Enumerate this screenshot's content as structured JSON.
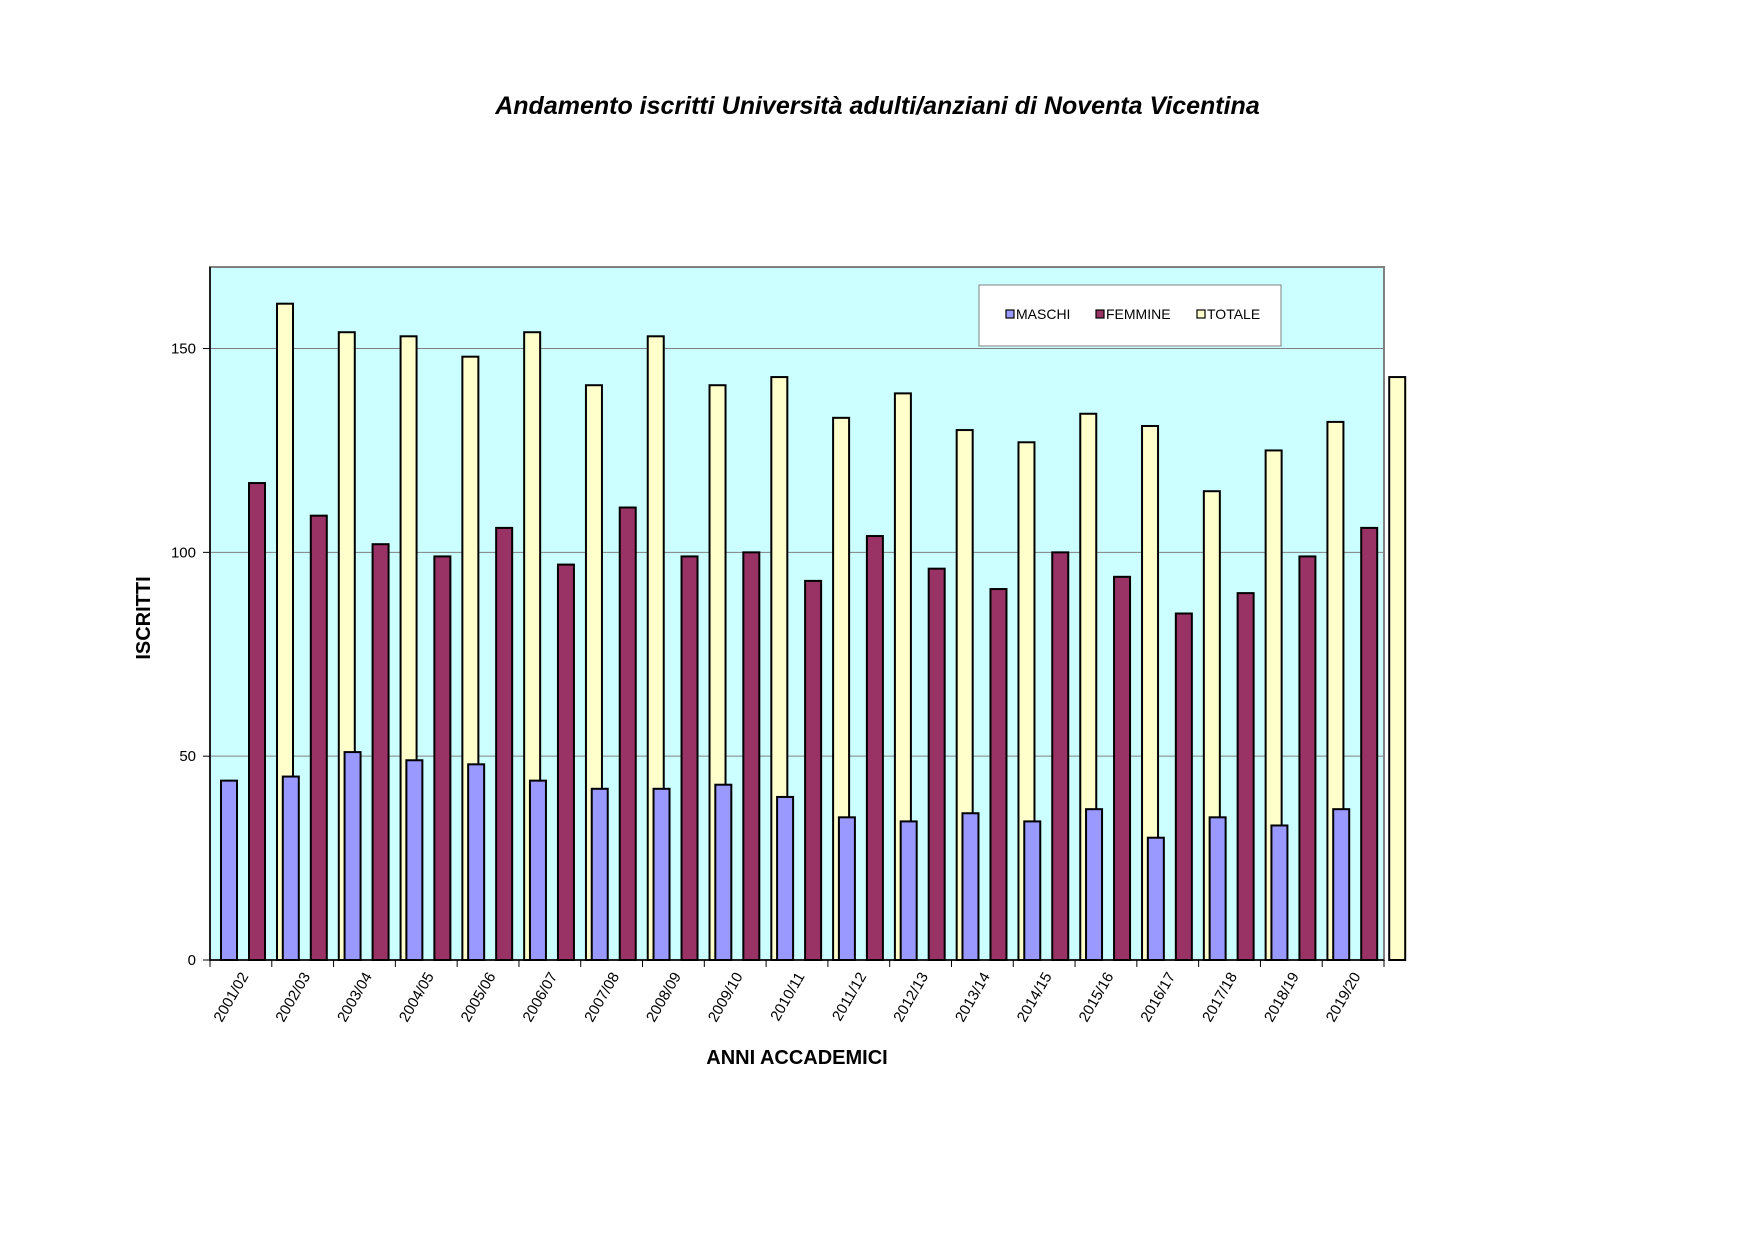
{
  "chart_data": {
    "type": "bar",
    "title": "Andamento iscritti Università adulti/anziani di Noventa Vicentina",
    "xlabel": "ANNI ACCADEMICI",
    "ylabel": "ISCRITTI",
    "ylim": [
      0,
      170
    ],
    "yticks": [
      0,
      50,
      100,
      150
    ],
    "grid": true,
    "legend_position": "top-right",
    "plot_background": "#CCFFFF",
    "categories": [
      "2001/02",
      "2002/03",
      "2003/04",
      "2004/05",
      "2005/06",
      "2006/07",
      "2007/08",
      "2008/09",
      "2009/10",
      "2010/11",
      "2011/12",
      "2012/13",
      "2013/14",
      "2014/15",
      "2015/16",
      "2016/17",
      "2017/18",
      "2018/19",
      "2019/20"
    ],
    "series": [
      {
        "name": "MASCHI",
        "color": "#9999FF",
        "values": [
          44,
          45,
          51,
          49,
          48,
          44,
          42,
          42,
          43,
          40,
          35,
          34,
          36,
          34,
          37,
          30,
          35,
          33,
          37
        ]
      },
      {
        "name": "FEMMINE",
        "color": "#993366",
        "values": [
          117,
          109,
          102,
          99,
          106,
          97,
          111,
          99,
          100,
          93,
          104,
          96,
          91,
          100,
          94,
          85,
          90,
          99,
          106
        ]
      },
      {
        "name": "TOTALE",
        "color": "#FFFFCC",
        "values": [
          161,
          154,
          153,
          148,
          154,
          141,
          153,
          141,
          143,
          133,
          139,
          130,
          127,
          134,
          131,
          115,
          125,
          132,
          143
        ]
      }
    ]
  }
}
